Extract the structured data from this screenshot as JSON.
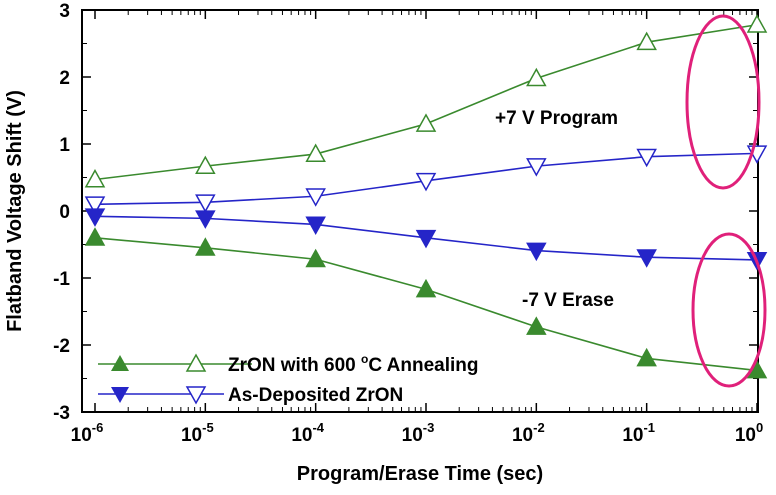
{
  "chart_data": {
    "type": "line",
    "xlabel": "Program/Erase Time (sec)",
    "ylabel": "Flatband Voltage Shift (V)",
    "xscale": "log",
    "x": [
      1e-06,
      1e-05,
      0.0001,
      0.001,
      0.01,
      0.1,
      1
    ],
    "xlim": [
      1e-06,
      1
    ],
    "ylim": [
      -3,
      3
    ],
    "x_ticks": [
      {
        "base": "10",
        "exp": "-6"
      },
      {
        "base": "10",
        "exp": "-5"
      },
      {
        "base": "10",
        "exp": "-4"
      },
      {
        "base": "10",
        "exp": "-3"
      },
      {
        "base": "10",
        "exp": "-2"
      },
      {
        "base": "10",
        "exp": "-1"
      },
      {
        "base": "10",
        "exp": "0"
      }
    ],
    "y_ticks": [
      "3",
      "2",
      "1",
      "0",
      "-1",
      "-2",
      "-3"
    ],
    "y_tick_values": [
      3,
      2,
      1,
      0,
      -1,
      -2,
      -3
    ],
    "grid": false,
    "series": [
      {
        "legend_id": "annealed",
        "marker": "triangle-up",
        "fill": "none",
        "color": "#3a8a2e",
        "values": [
          0.47,
          0.67,
          0.85,
          1.3,
          1.98,
          2.52,
          2.78
        ]
      },
      {
        "legend_id": "annealed",
        "marker": "triangle-up",
        "fill": "solid",
        "color": "#3a8a2e",
        "values": [
          -0.4,
          -0.55,
          -0.72,
          -1.17,
          -1.73,
          -2.2,
          -2.38
        ]
      },
      {
        "legend_id": "as_deposited",
        "marker": "triangle-down",
        "fill": "none",
        "color": "#2525c8",
        "values": [
          0.1,
          0.13,
          0.22,
          0.45,
          0.67,
          0.81,
          0.86
        ]
      },
      {
        "legend_id": "as_deposited",
        "marker": "triangle-down",
        "fill": "solid",
        "color": "#2525c8",
        "values": [
          -0.08,
          -0.11,
          -0.2,
          -0.4,
          -0.59,
          -0.69,
          -0.73
        ]
      }
    ],
    "legend": {
      "placement": "bottom-left",
      "annealed": {
        "text_pre": "ZrON with 600 ",
        "sup": "o",
        "text_post": "C Annealing",
        "color": "#3a8a2e"
      },
      "as_deposited": {
        "text": "As-Deposited ZrON",
        "color": "#2525c8"
      }
    },
    "annotations": [
      {
        "text": "+7 V Program",
        "color": "#e0207a"
      },
      {
        "text": "-7 V Erase",
        "color": "#e0207a"
      }
    ]
  }
}
